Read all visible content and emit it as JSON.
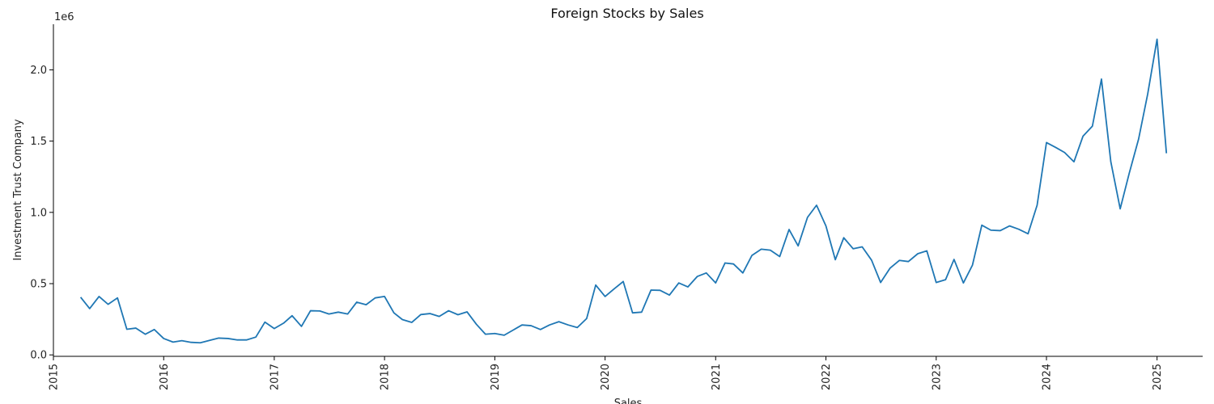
{
  "chart_data": {
    "type": "line",
    "title": "Foreign Stocks by Sales",
    "xlabel": "Sales",
    "ylabel": "Investment Trust Company",
    "y_multiplier_label": "1e6",
    "y_multiplier": 1000000,
    "xlim": [
      "2015-01-01",
      "2025-06-01"
    ],
    "ylim": [
      -10000,
      2320000
    ],
    "x_ticks": [
      "2015-01-01",
      "2016-01-01",
      "2017-01-01",
      "2018-01-01",
      "2019-01-01",
      "2020-01-01",
      "2021-01-01",
      "2022-01-01",
      "2023-01-01",
      "2024-01-01",
      "2025-01-01"
    ],
    "x_tick_labels": [
      "2015",
      "2016",
      "2017",
      "2018",
      "2019",
      "2020",
      "2021",
      "2022",
      "2023",
      "2024",
      "2025"
    ],
    "y_ticks": [
      0,
      500000,
      1000000,
      1500000,
      2000000
    ],
    "y_tick_labels": [
      "0.0",
      "0.5",
      "1.0",
      "1.5",
      "2.0"
    ],
    "grid": false,
    "line_color": "#1f77b4",
    "series": [
      {
        "x": [
          "2015-04",
          "2015-05",
          "2015-06",
          "2015-07",
          "2015-08",
          "2015-09",
          "2015-10",
          "2015-11",
          "2015-12",
          "2016-01",
          "2016-02",
          "2016-03",
          "2016-04",
          "2016-05",
          "2016-06",
          "2016-07",
          "2016-08",
          "2016-09",
          "2016-10",
          "2016-11",
          "2016-12",
          "2017-01",
          "2017-02",
          "2017-03",
          "2017-04",
          "2017-05",
          "2017-06",
          "2017-07",
          "2017-08",
          "2017-09",
          "2017-10",
          "2017-11",
          "2017-12",
          "2018-01",
          "2018-02",
          "2018-03",
          "2018-04",
          "2018-05",
          "2018-06",
          "2018-07",
          "2018-08",
          "2018-09",
          "2018-10",
          "2018-11",
          "2018-12",
          "2019-01",
          "2019-02",
          "2019-03",
          "2019-04",
          "2019-05",
          "2019-06",
          "2019-07",
          "2019-08",
          "2019-09",
          "2019-10",
          "2019-11",
          "2019-12",
          "2020-01",
          "2020-02",
          "2020-03",
          "2020-04",
          "2020-05",
          "2020-06",
          "2020-07",
          "2020-08",
          "2020-09",
          "2020-10",
          "2020-11",
          "2020-12",
          "2021-01",
          "2021-02",
          "2021-03",
          "2021-04",
          "2021-05",
          "2021-06",
          "2021-07",
          "2021-08",
          "2021-09",
          "2021-10",
          "2021-11",
          "2021-12",
          "2022-01",
          "2022-02",
          "2022-03",
          "2022-04",
          "2022-05",
          "2022-06",
          "2022-07",
          "2022-08",
          "2022-09",
          "2022-10",
          "2022-11",
          "2022-12",
          "2023-01",
          "2023-02",
          "2023-03",
          "2023-04",
          "2023-05",
          "2023-06",
          "2023-07",
          "2023-08",
          "2023-09",
          "2023-10",
          "2023-11",
          "2023-12",
          "2024-01",
          "2024-02",
          "2024-03",
          "2024-04",
          "2024-05",
          "2024-06",
          "2024-07",
          "2024-08",
          "2024-09",
          "2024-10",
          "2024-11",
          "2024-12",
          "2025-01",
          "2025-02"
        ],
        "values": [
          405000,
          325000,
          410000,
          355000,
          400000,
          180000,
          188000,
          145000,
          178000,
          115000,
          90000,
          100000,
          88000,
          85000,
          102000,
          118000,
          115000,
          105000,
          105000,
          125000,
          230000,
          185000,
          223000,
          275000,
          200000,
          310000,
          308000,
          287000,
          300000,
          287000,
          370000,
          352000,
          400000,
          410000,
          295000,
          248000,
          228000,
          283000,
          290000,
          270000,
          310000,
          282000,
          302000,
          215000,
          145000,
          150000,
          138000,
          172000,
          210000,
          205000,
          178000,
          210000,
          233000,
          210000,
          192000,
          255000,
          490000,
          410000,
          465000,
          515000,
          295000,
          300000,
          455000,
          453000,
          420000,
          505000,
          477000,
          550000,
          575000,
          505000,
          645000,
          638000,
          575000,
          698000,
          742000,
          735000,
          690000,
          880000,
          765000,
          965000,
          1050000,
          905000,
          668000,
          822000,
          745000,
          758000,
          665000,
          508000,
          608000,
          663000,
          655000,
          710000,
          730000,
          508000,
          528000,
          670000,
          505000,
          630000,
          910000,
          875000,
          872000,
          905000,
          882000,
          850000,
          1050000,
          1490000,
          1455000,
          1420000,
          1355000,
          1535000,
          1605000,
          1935000,
          1355000,
          1025000,
          1275000,
          1515000,
          1830000,
          2215000,
          1415000
        ]
      }
    ]
  }
}
